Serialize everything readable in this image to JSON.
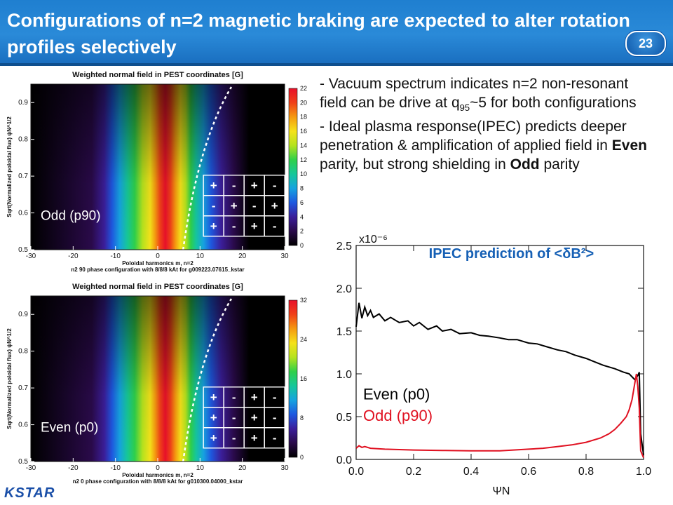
{
  "slide": {
    "title": "Configurations of n=2 magnetic braking are expected to  alter rotation profiles selectively",
    "page_number": "23",
    "logo_text": "KSTAR"
  },
  "bullets": {
    "b1_prefix": "- Vacuum spectrum indicates n=2 non-resonant field can be drive at q",
    "b1_sub": "95",
    "b1_suffix": "~5 for both configurations",
    "b2_part1": "- Ideal plasma response(IPEC) predicts deeper penetration & amplification of applied field in ",
    "b2_even": "Even",
    "b2_part2": " parity, but strong shielding in ",
    "b2_odd": "Odd",
    "b2_part3": " parity"
  },
  "spectrum_top": {
    "title": "Weighted normal field in PEST coordinates [G]",
    "ylabel": "Sqrt(Normalized poloidal flux) ψN^1/2",
    "xlabel": "Poloidal harmonics m, n=2",
    "caption": "n2 90 phase configuration with 8/8/8 kAt for g009223.07615_kstar",
    "label": "Odd (p90)",
    "xticks": [
      "-30",
      "-20",
      "-10",
      "0",
      "10",
      "20",
      "30"
    ],
    "yticks": [
      "0.5",
      "0.6",
      "0.7",
      "0.8",
      "0.9"
    ],
    "cbticks": [
      "0",
      "2",
      "4",
      "6",
      "8",
      "10",
      "12",
      "14",
      "16",
      "18",
      "20",
      "22"
    ],
    "grid": [
      [
        "+",
        "-",
        "+",
        "-"
      ],
      [
        "-",
        "+",
        "-",
        "+"
      ],
      [
        "+",
        "-",
        "+",
        "-"
      ]
    ]
  },
  "spectrum_bottom": {
    "title": "Weighted normal field in PEST coordinates [G]",
    "ylabel": "Sqrt(Normalized poloidal flux) ψN^1/2",
    "xlabel": "Poloidal harmonics m, n=2",
    "caption": "n2 0 phase configuration with 8/8/8 kAt for g010300.04000_kstar",
    "label": "Even (p0)",
    "xticks": [
      "-30",
      "-20",
      "-10",
      "0",
      "10",
      "20",
      "30"
    ],
    "yticks": [
      "0.5",
      "0.6",
      "0.7",
      "0.8",
      "0.9"
    ],
    "cbticks": [
      "0",
      "8",
      "16",
      "24",
      "32"
    ],
    "grid": [
      [
        "+",
        "-",
        "+",
        "-"
      ],
      [
        "+",
        "-",
        "+",
        "-"
      ],
      [
        "+",
        "-",
        "+",
        "-"
      ]
    ]
  },
  "chart_data": {
    "type": "line",
    "title": "IPEC prediction of <δB²>",
    "xlabel": "ΨN",
    "ylabel": "",
    "yscale_label": "x10⁻⁶",
    "xlim": [
      0.0,
      1.0
    ],
    "ylim": [
      0.0,
      2.5
    ],
    "xticks": [
      "0.0",
      "0.2",
      "0.4",
      "0.6",
      "0.8",
      "1.0"
    ],
    "yticks": [
      "0.0",
      "0.5",
      "1.0",
      "1.5",
      "2.0",
      "2.5"
    ],
    "series": [
      {
        "name": "Even (p0)",
        "color": "#000000",
        "x": [
          0.0,
          0.01,
          0.02,
          0.03,
          0.04,
          0.05,
          0.06,
          0.08,
          0.1,
          0.12,
          0.15,
          0.18,
          0.2,
          0.22,
          0.25,
          0.28,
          0.3,
          0.33,
          0.36,
          0.4,
          0.43,
          0.46,
          0.5,
          0.53,
          0.56,
          0.6,
          0.63,
          0.66,
          0.7,
          0.73,
          0.76,
          0.8,
          0.83,
          0.86,
          0.9,
          0.93,
          0.95,
          0.97,
          0.98,
          0.985,
          0.99,
          1.0
        ],
        "y": [
          1.55,
          1.83,
          1.65,
          1.78,
          1.68,
          1.74,
          1.66,
          1.7,
          1.62,
          1.66,
          1.6,
          1.62,
          1.56,
          1.6,
          1.52,
          1.56,
          1.5,
          1.52,
          1.47,
          1.48,
          1.45,
          1.44,
          1.42,
          1.4,
          1.4,
          1.36,
          1.35,
          1.32,
          1.28,
          1.26,
          1.22,
          1.18,
          1.14,
          1.1,
          1.06,
          1.02,
          1.0,
          0.93,
          0.98,
          1.02,
          0.3,
          0.05
        ]
      },
      {
        "name": "Odd (p90)",
        "color": "#e01020",
        "x": [
          0.0,
          0.01,
          0.02,
          0.03,
          0.05,
          0.1,
          0.2,
          0.3,
          0.4,
          0.5,
          0.6,
          0.65,
          0.7,
          0.75,
          0.8,
          0.85,
          0.88,
          0.9,
          0.92,
          0.94,
          0.95,
          0.96,
          0.97,
          0.975,
          0.98,
          0.985,
          0.99,
          1.0
        ],
        "y": [
          0.13,
          0.16,
          0.14,
          0.15,
          0.13,
          0.12,
          0.11,
          0.105,
          0.1,
          0.1,
          0.12,
          0.13,
          0.15,
          0.17,
          0.2,
          0.25,
          0.3,
          0.35,
          0.42,
          0.5,
          0.58,
          0.7,
          0.9,
          1.0,
          0.85,
          0.6,
          0.1,
          0.02
        ]
      }
    ],
    "legend": [
      "Even (p0)",
      "Odd (p90)"
    ],
    "legend_placement": "center-left"
  }
}
